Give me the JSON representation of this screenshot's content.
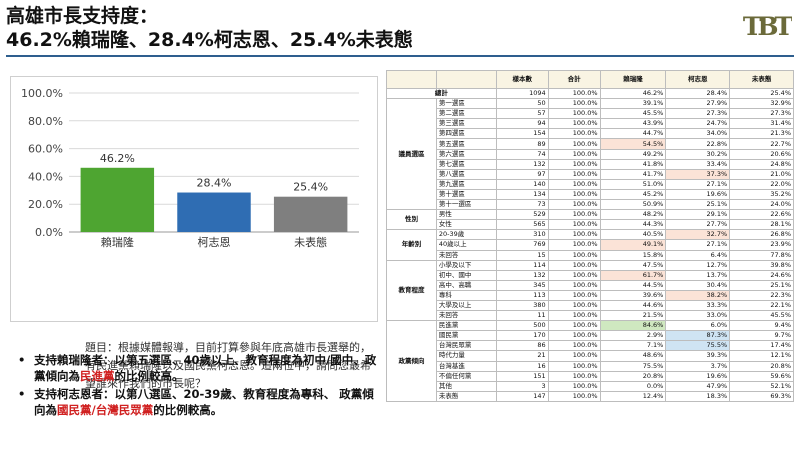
{
  "header": {
    "title_line1": "高雄市長支持度：",
    "title_line2": "46.2%賴瑞隆、28.4%柯志恩、25.4%未表態",
    "logo_text": "TBT"
  },
  "chart_data": {
    "type": "bar",
    "categories": [
      "賴瑞隆",
      "柯志恩",
      "未表態"
    ],
    "values": [
      46.2,
      28.4,
      25.4
    ],
    "value_labels": [
      "46.2%",
      "28.4%",
      "25.4%"
    ],
    "colors": [
      "#4ea531",
      "#2f6db3",
      "#7f7f7f"
    ],
    "ylim": [
      0,
      100
    ],
    "yticks": [
      "0.0%",
      "20.0%",
      "40.0%",
      "60.0%",
      "80.0%",
      "100.0%"
    ],
    "grid": true,
    "xlabel": "",
    "ylabel": ""
  },
  "question": "題目：根據媒體報導，目前打算參與年底高雄市長選舉的，有民進黨賴瑞隆以及國民黨柯志恩。這兩位中，請問您最希望誰來作我們的市長呢？",
  "bullets": [
    {
      "head": "支持賴瑞隆者",
      "text": "：以第五選區、40歲以上、教育程度為初中/國中、政黨傾向為",
      "party": "民進黨",
      "tail": "的比例較高。"
    },
    {
      "head": "支持柯志恩者",
      "text": "：以第八選區、20-39歲、教育程度為專科、 政黨傾向為",
      "party": "國民黨/台灣民眾黨",
      "tail": "的比例較高。"
    }
  ],
  "table": {
    "headers": [
      "樣本數",
      "合計",
      "賴瑞隆",
      "柯志恩",
      "未表態"
    ],
    "groups": [
      {
        "name": "總計",
        "rows": [
          {
            "label": "",
            "values": [
              "1094",
              "100.0%",
              "46.2%",
              "28.4%",
              "25.4%"
            ],
            "hl": [
              "",
              "",
              "",
              "",
              ""
            ]
          }
        ]
      },
      {
        "name": "議員選區",
        "rows": [
          {
            "label": "第一選區",
            "values": [
              "50",
              "100.0%",
              "39.1%",
              "27.9%",
              "32.9%"
            ],
            "hl": [
              "",
              "",
              "",
              "",
              ""
            ]
          },
          {
            "label": "第二選區",
            "values": [
              "57",
              "100.0%",
              "45.5%",
              "27.3%",
              "27.3%"
            ],
            "hl": [
              "",
              "",
              "",
              "",
              ""
            ]
          },
          {
            "label": "第三選區",
            "values": [
              "94",
              "100.0%",
              "43.9%",
              "24.7%",
              "31.4%"
            ],
            "hl": [
              "",
              "",
              "",
              "",
              ""
            ]
          },
          {
            "label": "第四選區",
            "values": [
              "154",
              "100.0%",
              "44.7%",
              "34.0%",
              "21.3%"
            ],
            "hl": [
              "",
              "",
              "",
              "",
              ""
            ]
          },
          {
            "label": "第五選區",
            "values": [
              "89",
              "100.0%",
              "54.5%",
              "22.8%",
              "22.7%"
            ],
            "hl": [
              "",
              "",
              "pink",
              "",
              ""
            ]
          },
          {
            "label": "第六選區",
            "values": [
              "74",
              "100.0%",
              "49.2%",
              "30.2%",
              "20.6%"
            ],
            "hl": [
              "",
              "",
              "",
              "",
              ""
            ]
          },
          {
            "label": "第七選區",
            "values": [
              "132",
              "100.0%",
              "41.8%",
              "33.4%",
              "24.8%"
            ],
            "hl": [
              "",
              "",
              "",
              "",
              ""
            ]
          },
          {
            "label": "第八選區",
            "values": [
              "97",
              "100.0%",
              "41.7%",
              "37.3%",
              "21.0%"
            ],
            "hl": [
              "",
              "",
              "",
              "pink",
              ""
            ]
          },
          {
            "label": "第九選區",
            "values": [
              "140",
              "100.0%",
              "51.0%",
              "27.1%",
              "22.0%"
            ],
            "hl": [
              "",
              "",
              "",
              "",
              ""
            ]
          },
          {
            "label": "第十選區",
            "values": [
              "134",
              "100.0%",
              "45.2%",
              "19.6%",
              "35.2%"
            ],
            "hl": [
              "",
              "",
              "",
              "",
              ""
            ]
          },
          {
            "label": "第十一選區",
            "values": [
              "73",
              "100.0%",
              "50.9%",
              "25.1%",
              "24.0%"
            ],
            "hl": [
              "",
              "",
              "",
              "",
              ""
            ]
          }
        ]
      },
      {
        "name": "性別",
        "rows": [
          {
            "label": "男性",
            "values": [
              "529",
              "100.0%",
              "48.2%",
              "29.1%",
              "22.6%"
            ],
            "hl": [
              "",
              "",
              "",
              "",
              ""
            ]
          },
          {
            "label": "女性",
            "values": [
              "565",
              "100.0%",
              "44.3%",
              "27.7%",
              "28.1%"
            ],
            "hl": [
              "",
              "",
              "",
              "",
              ""
            ]
          }
        ]
      },
      {
        "name": "年齡別",
        "rows": [
          {
            "label": "20-39歲",
            "values": [
              "310",
              "100.0%",
              "40.5%",
              "32.7%",
              "26.8%"
            ],
            "hl": [
              "",
              "",
              "",
              "pink",
              ""
            ]
          },
          {
            "label": "40歲以上",
            "values": [
              "769",
              "100.0%",
              "49.1%",
              "27.1%",
              "23.9%"
            ],
            "hl": [
              "",
              "",
              "pink",
              "",
              ""
            ]
          },
          {
            "label": "未回答",
            "values": [
              "15",
              "100.0%",
              "15.8%",
              "6.4%",
              "77.8%"
            ],
            "hl": [
              "",
              "",
              "",
              "",
              ""
            ]
          }
        ]
      },
      {
        "name": "教育程度",
        "rows": [
          {
            "label": "小學及以下",
            "values": [
              "114",
              "100.0%",
              "47.5%",
              "12.7%",
              "39.8%"
            ],
            "hl": [
              "",
              "",
              "",
              "",
              ""
            ]
          },
          {
            "label": "初中、國中",
            "values": [
              "132",
              "100.0%",
              "61.7%",
              "13.7%",
              "24.6%"
            ],
            "hl": [
              "",
              "",
              "pink",
              "",
              ""
            ]
          },
          {
            "label": "高中、高職",
            "values": [
              "345",
              "100.0%",
              "44.5%",
              "30.4%",
              "25.1%"
            ],
            "hl": [
              "",
              "",
              "",
              "",
              ""
            ]
          },
          {
            "label": "專科",
            "values": [
              "113",
              "100.0%",
              "39.6%",
              "38.2%",
              "22.3%"
            ],
            "hl": [
              "",
              "",
              "",
              "pink",
              ""
            ]
          },
          {
            "label": "大學及以上",
            "values": [
              "380",
              "100.0%",
              "44.6%",
              "33.3%",
              "22.1%"
            ],
            "hl": [
              "",
              "",
              "",
              "",
              ""
            ]
          },
          {
            "label": "未回答",
            "values": [
              "11",
              "100.0%",
              "21.5%",
              "33.0%",
              "45.5%"
            ],
            "hl": [
              "",
              "",
              "",
              "",
              ""
            ]
          }
        ]
      },
      {
        "name": "政黨傾向",
        "rows": [
          {
            "label": "民進黨",
            "values": [
              "500",
              "100.0%",
              "84.6%",
              "6.0%",
              "9.4%"
            ],
            "hl": [
              "",
              "",
              "green",
              "",
              ""
            ]
          },
          {
            "label": "國民黨",
            "values": [
              "170",
              "100.0%",
              "2.9%",
              "87.3%",
              "9.7%"
            ],
            "hl": [
              "",
              "",
              "",
              "blue",
              ""
            ]
          },
          {
            "label": "台灣民眾黨",
            "values": [
              "86",
              "100.0%",
              "7.1%",
              "75.5%",
              "17.4%"
            ],
            "hl": [
              "",
              "",
              "",
              "blue",
              ""
            ]
          },
          {
            "label": "時代力量",
            "values": [
              "21",
              "100.0%",
              "48.6%",
              "39.3%",
              "12.1%"
            ],
            "hl": [
              "",
              "",
              "",
              "",
              ""
            ]
          },
          {
            "label": "台灣基進",
            "values": [
              "16",
              "100.0%",
              "75.5%",
              "3.7%",
              "20.8%"
            ],
            "hl": [
              "",
              "",
              "",
              "",
              ""
            ]
          },
          {
            "label": "不偏任何黨",
            "values": [
              "151",
              "100.0%",
              "20.8%",
              "19.6%",
              "59.6%"
            ],
            "hl": [
              "",
              "",
              "",
              "",
              ""
            ]
          },
          {
            "label": "其他",
            "values": [
              "3",
              "100.0%",
              "0.0%",
              "47.9%",
              "52.1%"
            ],
            "hl": [
              "",
              "",
              "",
              "",
              ""
            ]
          },
          {
            "label": "未表態",
            "values": [
              "147",
              "100.0%",
              "12.4%",
              "18.3%",
              "69.3%"
            ],
            "hl": [
              "",
              "",
              "",
              "",
              ""
            ]
          }
        ]
      }
    ]
  }
}
